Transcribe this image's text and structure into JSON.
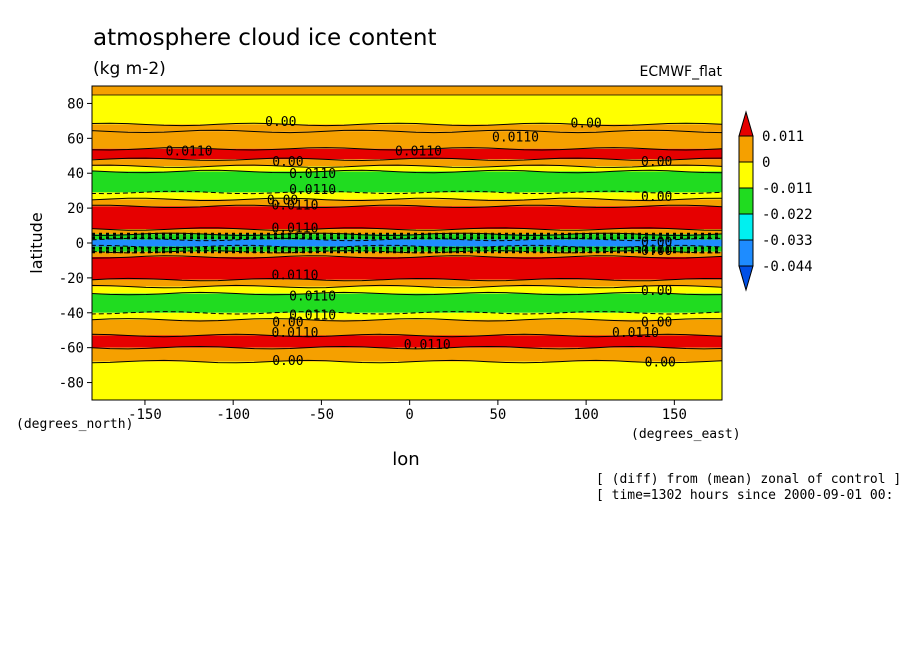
{
  "chart_data": {
    "type": "heatmap",
    "title": "atmosphere cloud ice content",
    "units": "(kg m-2)",
    "source": "ECMWF_flat",
    "xlabel": "lon",
    "ylabel": "latitude",
    "x_units": "(degrees_east)",
    "y_units": "(degrees_north)",
    "xlim": [
      -180,
      177
    ],
    "ylim": [
      -90,
      90
    ],
    "x_ticks": [
      -150,
      -100,
      -50,
      0,
      50,
      100,
      150
    ],
    "x_tick_labels": [
      "-150",
      "-100",
      "-50",
      "0",
      "50",
      "100",
      "150"
    ],
    "y_ticks": [
      -80,
      -60,
      -40,
      -20,
      0,
      20,
      40,
      60,
      80
    ],
    "y_tick_labels": [
      "-80",
      "-60",
      "-40",
      "-20",
      "0",
      "20",
      "40",
      "60",
      "80"
    ],
    "colorbar": {
      "levels": [
        0.011,
        0,
        -0.011,
        -0.022,
        -0.033,
        -0.044
      ],
      "labels": [
        "0.011",
        "0",
        "-0.011",
        "-0.022",
        "-0.033",
        "-0.044"
      ],
      "colors": [
        "#e60000",
        "#f5a000",
        "#ffff00",
        "#20dc20",
        "#00f0f0",
        "#1e8cff",
        "#0050e6"
      ]
    },
    "bands": [
      {
        "lat": [
          68,
          90
        ],
        "color": "#ffff00"
      },
      {
        "lat": [
          64,
          68
        ],
        "color": "#f5a000"
      },
      {
        "lat": [
          54,
          64
        ],
        "color": "#f5a000"
      },
      {
        "lat": [
          48,
          54
        ],
        "color": "#e60000"
      },
      {
        "lat": [
          44,
          48
        ],
        "color": "#f5a000"
      },
      {
        "lat": [
          41,
          44
        ],
        "color": "#ffff00"
      },
      {
        "lat": [
          29,
          41
        ],
        "color": "#20dc20"
      },
      {
        "lat": [
          25,
          29
        ],
        "color": "#ffff00"
      },
      {
        "lat": [
          21,
          25
        ],
        "color": "#f5a000"
      },
      {
        "lat": [
          8,
          21
        ],
        "color": "#e60000"
      },
      {
        "lat": [
          5,
          8
        ],
        "color": "#f5a000"
      },
      {
        "lat": [
          2,
          5
        ],
        "color": "#20dc20"
      },
      {
        "lat": [
          -2,
          2
        ],
        "color": "#1e8cff"
      },
      {
        "lat": [
          -5,
          -2
        ],
        "color": "#20dc20"
      },
      {
        "lat": [
          -8,
          -5
        ],
        "color": "#f5a000"
      },
      {
        "lat": [
          -21,
          -8
        ],
        "color": "#e60000"
      },
      {
        "lat": [
          -25,
          -21
        ],
        "color": "#f5a000"
      },
      {
        "lat": [
          -29,
          -25
        ],
        "color": "#ffff00"
      },
      {
        "lat": [
          -40,
          -29
        ],
        "color": "#20dc20"
      },
      {
        "lat": [
          -44,
          -40
        ],
        "color": "#ffff00"
      },
      {
        "lat": [
          -53,
          -44
        ],
        "color": "#f5a000"
      },
      {
        "lat": [
          -60,
          -53
        ],
        "color": "#e60000"
      },
      {
        "lat": [
          -68,
          -60
        ],
        "color": "#f5a000"
      },
      {
        "lat": [
          -90,
          -68
        ],
        "color": "#ffff00"
      }
    ],
    "contour_labels": [
      {
        "text": "0.00",
        "lon": -73,
        "lat": 70
      },
      {
        "text": "0.00",
        "lon": 100,
        "lat": 69
      },
      {
        "text": "0.0110",
        "lon": 60,
        "lat": 61
      },
      {
        "text": "0.0110",
        "lon": -125,
        "lat": 53
      },
      {
        "text": "0.0110",
        "lon": 5,
        "lat": 53
      },
      {
        "text": "0.00",
        "lon": -69,
        "lat": 47
      },
      {
        "text": "0.00",
        "lon": 140,
        "lat": 47
      },
      {
        "text": "0.0110",
        "lon": -55,
        "lat": 40
      },
      {
        "text": "0.0110",
        "lon": -55,
        "lat": 31
      },
      {
        "text": "0.00",
        "lon": 140,
        "lat": 27
      },
      {
        "text": "0.00",
        "lon": -72,
        "lat": 25
      },
      {
        "text": "0.0110",
        "lon": -65,
        "lat": 22
      },
      {
        "text": "0.0110",
        "lon": -65,
        "lat": 9
      },
      {
        "text": "0.00",
        "lon": 140,
        "lat": 1
      },
      {
        "text": "0.00",
        "lon": 140,
        "lat": -4
      },
      {
        "text": "0.0110",
        "lon": -65,
        "lat": -18
      },
      {
        "text": "0.00",
        "lon": 140,
        "lat": -27
      },
      {
        "text": "0.0110",
        "lon": -55,
        "lat": -30
      },
      {
        "text": "0.0110",
        "lon": -55,
        "lat": -41
      },
      {
        "text": "0.00",
        "lon": -69,
        "lat": -45
      },
      {
        "text": "0.00",
        "lon": 140,
        "lat": -45
      },
      {
        "text": "0.0110",
        "lon": -65,
        "lat": -51
      },
      {
        "text": "0.0110",
        "lon": 128,
        "lat": -51
      },
      {
        "text": "0.0110",
        "lon": 10,
        "lat": -58
      },
      {
        "text": "0.00",
        "lon": -69,
        "lat": -67
      },
      {
        "text": "0.00",
        "lon": 142,
        "lat": -68
      }
    ],
    "footnotes": [
      "[ (diff) from (mean) zonal of control ]",
      "[ time=1302 hours since 2000-09-01 00:"
    ]
  }
}
